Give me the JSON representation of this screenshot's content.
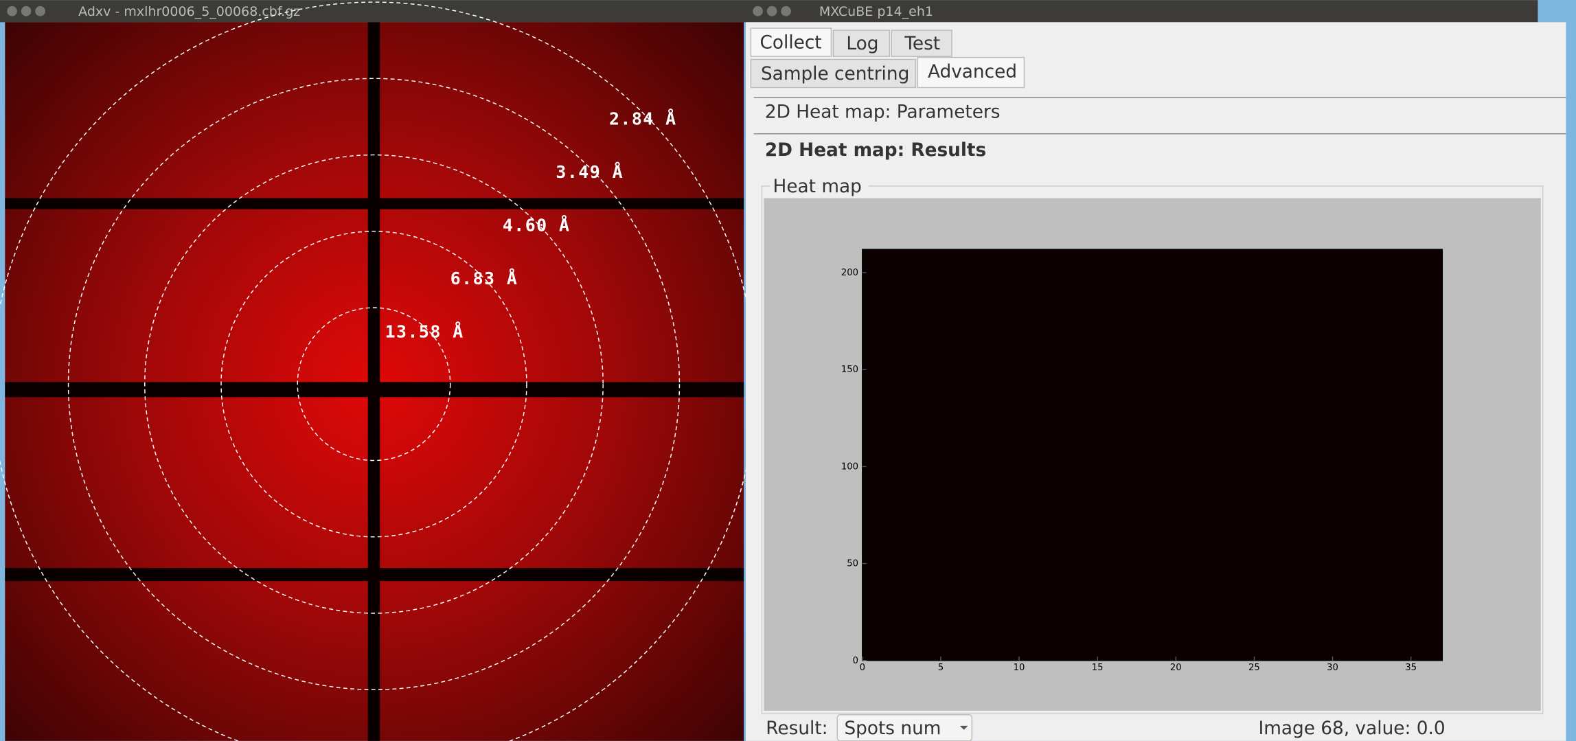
{
  "left_window": {
    "title": "Adxv - mxlhr0006_5_00068.cbf.gz",
    "resolution_labels": [
      "2.84 Å",
      "3.49 Å",
      "4.60 Å",
      "6.83 Å",
      "13.58 Å"
    ]
  },
  "right_window": {
    "title": "MXCuBE p14_eh1",
    "tabs": [
      "Collect",
      "Log",
      "Test"
    ],
    "subtabs": [
      "Sample centring",
      "Advanced"
    ],
    "sections": [
      "2D Heat map: Parameters",
      "2D Heat map: Results"
    ],
    "group_title": "Heat map",
    "heat_map": {
      "xlim": [
        0,
        37
      ],
      "ylim": [
        0,
        212
      ],
      "xticks": [
        0,
        5,
        10,
        15,
        20,
        25,
        30,
        35
      ],
      "yticks": [
        0,
        50,
        100,
        150,
        200
      ]
    },
    "result_label": "Result:",
    "result_value": "Spots num",
    "status": "Image 68, value: 0.0"
  }
}
